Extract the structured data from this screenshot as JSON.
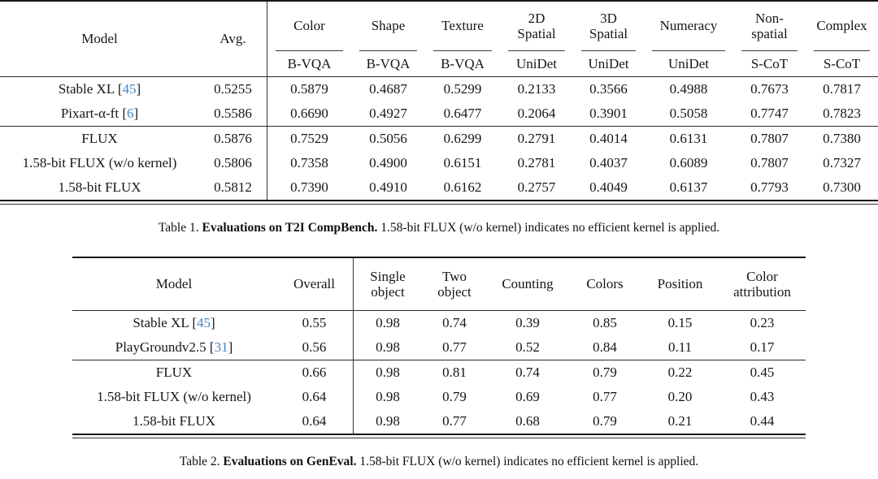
{
  "meta": {
    "cite_color": "#4285c4",
    "text_color": "#161616",
    "background": "#ffffff"
  },
  "table1": {
    "header": {
      "model": "Model",
      "avg": "Avg.",
      "groups": [
        {
          "label": "Color",
          "metric": "B-VQA"
        },
        {
          "label": "Shape",
          "metric": "B-VQA"
        },
        {
          "label": "Texture",
          "metric": "B-VQA"
        },
        {
          "label": "2D\nSpatial",
          "metric": "UniDet"
        },
        {
          "label": "3D\nSpatial",
          "metric": "UniDet"
        },
        {
          "label": "Numeracy",
          "metric": "UniDet"
        },
        {
          "label": "Non-\nspatial",
          "metric": "S-CoT"
        },
        {
          "label": "Complex",
          "metric": "S-CoT"
        }
      ]
    },
    "groups": [
      {
        "rows": [
          {
            "model": "Stable XL",
            "cite": "45",
            "values": [
              "0.5255",
              "0.5879",
              "0.4687",
              "0.5299",
              "0.2133",
              "0.3566",
              "0.4988",
              "0.7673",
              "0.7817"
            ]
          },
          {
            "model": "Pixart-α-ft",
            "cite": "6",
            "values": [
              "0.5586",
              "0.6690",
              "0.4927",
              "0.6477",
              "0.2064",
              "0.3901",
              "0.5058",
              "0.7747",
              "0.7823"
            ]
          }
        ]
      },
      {
        "rows": [
          {
            "model": "FLUX",
            "cite": null,
            "values": [
              "0.5876",
              "0.7529",
              "0.5056",
              "0.6299",
              "0.2791",
              "0.4014",
              "0.6131",
              "0.7807",
              "0.7380"
            ]
          },
          {
            "model": "1.58-bit FLUX (w/o kernel)",
            "cite": null,
            "values": [
              "0.5806",
              "0.7358",
              "0.4900",
              "0.6151",
              "0.2781",
              "0.4037",
              "0.6089",
              "0.7807",
              "0.7327"
            ]
          },
          {
            "model": "1.58-bit FLUX",
            "cite": null,
            "values": [
              "0.5812",
              "0.7390",
              "0.4910",
              "0.6162",
              "0.2757",
              "0.4049",
              "0.6137",
              "0.7793",
              "0.7300"
            ]
          }
        ]
      }
    ],
    "caption": {
      "prefix": "Table 1.",
      "bold": "Evaluations on T2I CompBench.",
      "rest": "1.58-bit FLUX (w/o kernel) indicates no efficient kernel is applied."
    }
  },
  "table2": {
    "header": {
      "model": "Model",
      "overall": "Overall",
      "cols": [
        "Single\nobject",
        "Two\nobject",
        "Counting",
        "Colors",
        "Position",
        "Color\nattribution"
      ]
    },
    "groups": [
      {
        "rows": [
          {
            "model": "Stable XL",
            "cite": "45",
            "values": [
              "0.55",
              "0.98",
              "0.74",
              "0.39",
              "0.85",
              "0.15",
              "0.23"
            ]
          },
          {
            "model": "PlayGroundv2.5",
            "cite": "31",
            "values": [
              "0.56",
              "0.98",
              "0.77",
              "0.52",
              "0.84",
              "0.11",
              "0.17"
            ]
          }
        ]
      },
      {
        "rows": [
          {
            "model": "FLUX",
            "cite": null,
            "values": [
              "0.66",
              "0.98",
              "0.81",
              "0.74",
              "0.79",
              "0.22",
              "0.45"
            ]
          },
          {
            "model": "1.58-bit FLUX (w/o kernel)",
            "cite": null,
            "values": [
              "0.64",
              "0.98",
              "0.79",
              "0.69",
              "0.77",
              "0.20",
              "0.43"
            ]
          },
          {
            "model": "1.58-bit FLUX",
            "cite": null,
            "values": [
              "0.64",
              "0.98",
              "0.77",
              "0.68",
              "0.79",
              "0.21",
              "0.44"
            ]
          }
        ]
      }
    ],
    "caption": {
      "prefix": "Table 2.",
      "bold": "Evaluations on GenEval.",
      "rest": "1.58-bit FLUX (w/o kernel) indicates no efficient kernel is applied."
    }
  }
}
